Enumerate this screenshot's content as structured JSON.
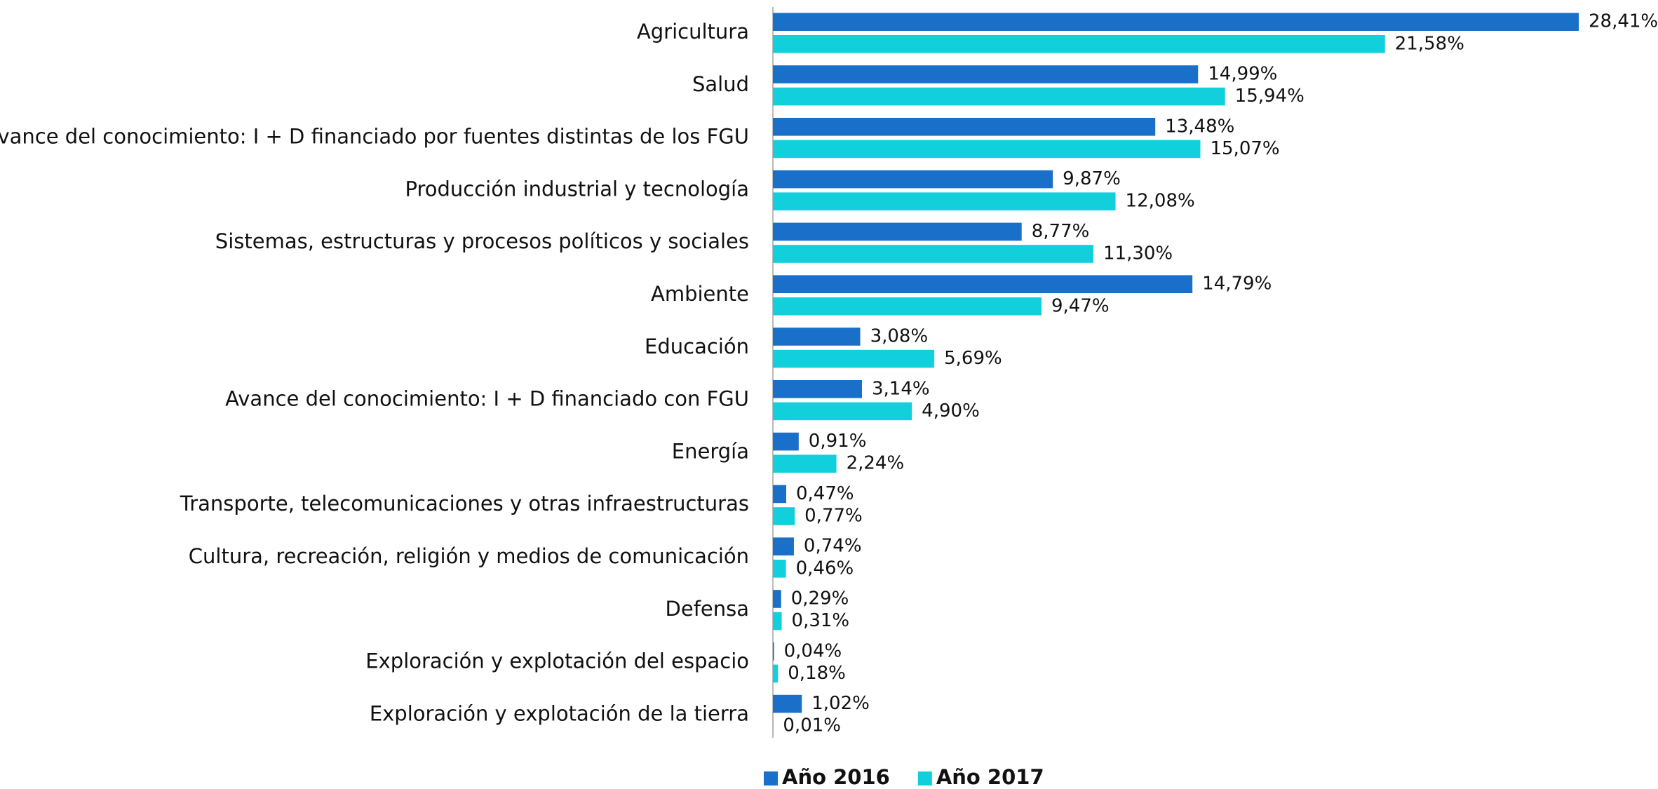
{
  "chart_data": {
    "type": "bar",
    "orientation": "horizontal",
    "categories": [
      "Agricultura",
      "Salud",
      "Avance del conocimiento: I + D financiado por fuentes distintas de los FGU",
      "Producción industrial y tecnología",
      "Sistemas, estructuras y procesos políticos y sociales",
      "Ambiente",
      "Educación",
      "Avance del conocimiento: I + D financiado con FGU",
      "Energía",
      "Transporte, telecomunicaciones y otras infraestructuras",
      "Cultura, recreación, religión y medios de comunicación",
      "Defensa",
      "Exploración y explotación del espacio",
      "Exploración y explotación de la tierra"
    ],
    "series": [
      {
        "name": "Año 2016",
        "color": "#1a6fc9",
        "values": [
          28.41,
          14.99,
          13.48,
          9.87,
          8.77,
          14.79,
          3.08,
          3.14,
          0.91,
          0.47,
          0.74,
          0.29,
          0.04,
          1.02
        ],
        "value_labels": [
          "28,41%",
          "14,99%",
          "13,48%",
          "9,87%",
          "8,77%",
          "14,79%",
          "3,08%",
          "3,14%",
          "0,91%",
          "0,47%",
          "0,74%",
          "0,29%",
          "0,04%",
          "1,02%"
        ]
      },
      {
        "name": "Año 2017",
        "color": "#12cfdc",
        "values": [
          21.58,
          15.94,
          15.07,
          12.08,
          11.3,
          9.47,
          5.69,
          4.9,
          2.24,
          0.77,
          0.46,
          0.31,
          0.18,
          0.01
        ],
        "value_labels": [
          "21,58%",
          "15,94%",
          "15,07%",
          "12,08%",
          "11,30%",
          "9,47%",
          "5,69%",
          "4,90%",
          "2,24%",
          "0,77%",
          "0,46%",
          "0,31%",
          "0,18%",
          "0,01%"
        ]
      }
    ],
    "legend": "bottom"
  }
}
